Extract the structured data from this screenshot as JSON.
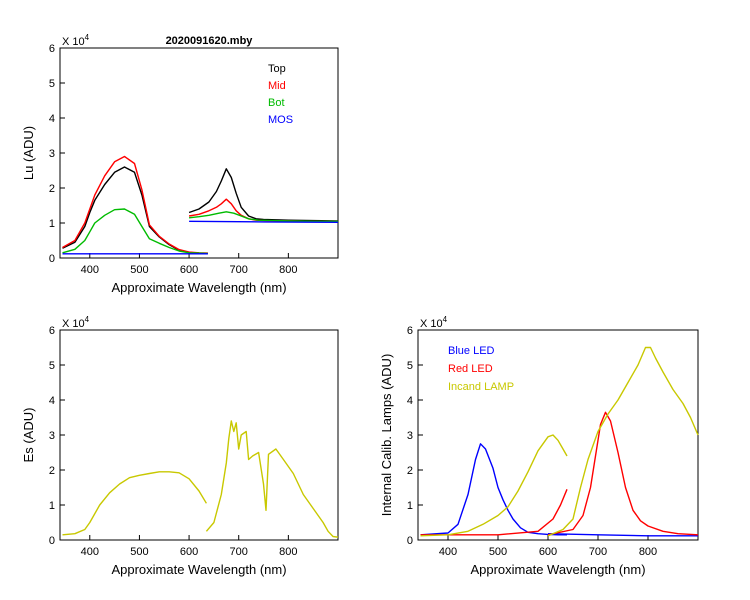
{
  "chart_data": [
    {
      "type": "line",
      "title": "2020091620.mby",
      "xlabel": "Approximate Wavelength (nm)",
      "ylabel": "Lu (ADU)",
      "xlim": [
        340,
        900
      ],
      "ylim": [
        0,
        6
      ],
      "y_multiplier": "X 10",
      "y_exponent": "4",
      "xticks": [
        400,
        500,
        600,
        700,
        800
      ],
      "yticks": [
        0,
        1,
        2,
        3,
        4,
        5,
        6
      ],
      "legend_position": "top-right",
      "series": [
        {
          "name": "Top",
          "color": "#000000",
          "segments": [
            {
              "x": [
                345,
                370,
                390,
                400,
                410,
                430,
                450,
                470,
                490,
                505,
                520,
                540,
                560,
                580,
                600,
                620,
                638
              ],
              "y": [
                0.28,
                0.45,
                0.9,
                1.3,
                1.65,
                2.1,
                2.45,
                2.6,
                2.45,
                1.8,
                0.9,
                0.6,
                0.38,
                0.22,
                0.16,
                0.14,
                0.13
              ]
            },
            {
              "x": [
                600,
                620,
                640,
                655,
                665,
                675,
                685,
                695,
                705,
                720,
                735,
                750,
                800,
                850,
                900
              ],
              "y": [
                1.3,
                1.4,
                1.6,
                1.9,
                2.2,
                2.55,
                2.3,
                1.85,
                1.45,
                1.2,
                1.12,
                1.1,
                1.08,
                1.07,
                1.06
              ]
            }
          ]
        },
        {
          "name": "Mid",
          "color": "#ff0000",
          "segments": [
            {
              "x": [
                345,
                370,
                390,
                400,
                410,
                430,
                450,
                470,
                490,
                505,
                520,
                540,
                560,
                580,
                600,
                620,
                638
              ],
              "y": [
                0.3,
                0.5,
                1.0,
                1.4,
                1.8,
                2.35,
                2.75,
                2.9,
                2.7,
                1.95,
                0.95,
                0.62,
                0.4,
                0.24,
                0.17,
                0.15,
                0.14
              ]
            },
            {
              "x": [
                600,
                620,
                640,
                655,
                665,
                675,
                685,
                695,
                705,
                720,
                735,
                750,
                800,
                850,
                900
              ],
              "y": [
                1.2,
                1.25,
                1.35,
                1.45,
                1.55,
                1.68,
                1.55,
                1.35,
                1.22,
                1.12,
                1.08,
                1.07,
                1.06,
                1.05,
                1.05
              ]
            }
          ]
        },
        {
          "name": "Bot",
          "color": "#00bb00",
          "segments": [
            {
              "x": [
                345,
                370,
                390,
                400,
                410,
                430,
                450,
                470,
                490,
                505,
                520,
                540,
                560,
                580,
                600,
                620,
                638
              ],
              "y": [
                0.15,
                0.25,
                0.5,
                0.75,
                1.0,
                1.22,
                1.38,
                1.4,
                1.25,
                0.9,
                0.55,
                0.42,
                0.3,
                0.2,
                0.15,
                0.14,
                0.13
              ]
            },
            {
              "x": [
                600,
                620,
                640,
                660,
                675,
                690,
                705,
                720,
                740,
                800,
                850,
                900
              ],
              "y": [
                1.15,
                1.18,
                1.22,
                1.28,
                1.32,
                1.28,
                1.2,
                1.12,
                1.08,
                1.06,
                1.05,
                1.05
              ]
            }
          ]
        },
        {
          "name": "MOS",
          "color": "#0000ff",
          "segments": [
            {
              "x": [
                345,
                500,
                638
              ],
              "y": [
                0.12,
                0.12,
                0.12
              ]
            },
            {
              "x": [
                600,
                750,
                900
              ],
              "y": [
                1.05,
                1.03,
                1.02
              ]
            }
          ]
        }
      ]
    },
    {
      "type": "line",
      "title": "",
      "xlabel": "Approximate Wavelength (nm)",
      "ylabel": "Es  (ADU)",
      "xlim": [
        340,
        900
      ],
      "ylim": [
        0,
        6
      ],
      "y_multiplier": "X 10",
      "y_exponent": "4",
      "xticks": [
        400,
        500,
        600,
        700,
        800
      ],
      "yticks": [
        0,
        1,
        2,
        3,
        4,
        5,
        6
      ],
      "series": [
        {
          "name": "Es",
          "color": "#c8c800",
          "segments": [
            {
              "x": [
                345,
                370,
                390,
                400,
                420,
                440,
                460,
                480,
                500,
                520,
                540,
                560,
                580,
                600,
                620,
                635
              ],
              "y": [
                0.15,
                0.18,
                0.3,
                0.5,
                1.0,
                1.35,
                1.6,
                1.78,
                1.85,
                1.9,
                1.95,
                1.95,
                1.92,
                1.75,
                1.4,
                1.05
              ]
            },
            {
              "x": [
                635,
                650,
                665,
                675,
                680,
                685,
                690,
                695,
                700,
                705,
                715,
                720,
                728,
                740,
                750,
                755,
                760,
                775,
                790,
                810,
                830,
                850,
                870,
                880,
                890,
                900
              ],
              "y": [
                0.25,
                0.5,
                1.3,
                2.2,
                2.9,
                3.4,
                3.1,
                3.35,
                2.6,
                3.0,
                3.1,
                2.3,
                2.4,
                2.5,
                1.6,
                0.85,
                2.45,
                2.6,
                2.3,
                1.9,
                1.3,
                0.9,
                0.5,
                0.25,
                0.1,
                0.08
              ]
            }
          ]
        }
      ]
    },
    {
      "type": "line",
      "title": "",
      "xlabel": "Approximate Wavelength (nm)",
      "ylabel": "Internal Calib. Lamps  (ADU)",
      "xlim": [
        340,
        900
      ],
      "ylim": [
        0,
        6
      ],
      "y_multiplier": "X 10",
      "y_exponent": "4",
      "xticks": [
        400,
        500,
        600,
        700,
        800
      ],
      "yticks": [
        0,
        1,
        2,
        3,
        4,
        5,
        6
      ],
      "legend_position": "top-left",
      "series": [
        {
          "name": "Blue LED",
          "color": "#0000ff",
          "segments": [
            {
              "x": [
                345,
                400,
                420,
                440,
                455,
                465,
                475,
                490,
                500,
                510,
                520,
                530,
                545,
                560,
                580,
                600,
                620,
                638
              ],
              "y": [
                0.15,
                0.2,
                0.45,
                1.3,
                2.3,
                2.75,
                2.6,
                2.05,
                1.5,
                1.15,
                0.85,
                0.6,
                0.35,
                0.22,
                0.18,
                0.16,
                0.15,
                0.15
              ]
            },
            {
              "x": [
                600,
                700,
                800,
                900
              ],
              "y": [
                0.18,
                0.15,
                0.12,
                0.12
              ]
            }
          ]
        },
        {
          "name": "Red LED",
          "color": "#ff0000",
          "segments": [
            {
              "x": [
                345,
                500,
                580,
                610,
                625,
                638
              ],
              "y": [
                0.15,
                0.15,
                0.25,
                0.6,
                1.0,
                1.45
              ]
            },
            {
              "x": [
                600,
                650,
                670,
                685,
                695,
                705,
                715,
                725,
                740,
                755,
                770,
                785,
                800,
                830,
                860,
                900
              ],
              "y": [
                0.15,
                0.3,
                0.7,
                1.5,
                2.4,
                3.3,
                3.65,
                3.4,
                2.5,
                1.5,
                0.85,
                0.55,
                0.4,
                0.25,
                0.18,
                0.15
              ]
            }
          ]
        },
        {
          "name": "Incand LAMP",
          "color": "#c8c800",
          "segments": [
            {
              "x": [
                345,
                400,
                440,
                470,
                500,
                520,
                540,
                560,
                580,
                600,
                610,
                620,
                630,
                638
              ],
              "y": [
                0.12,
                0.15,
                0.25,
                0.45,
                0.7,
                0.95,
                1.4,
                1.95,
                2.55,
                2.95,
                3.0,
                2.85,
                2.6,
                2.4
              ]
            },
            {
              "x": [
                600,
                630,
                650,
                665,
                680,
                700,
                720,
                740,
                760,
                780,
                795,
                805,
                815,
                830,
                850,
                870,
                885,
                900
              ],
              "y": [
                0.12,
                0.3,
                0.6,
                1.5,
                2.3,
                3.1,
                3.6,
                4.0,
                4.5,
                5.0,
                5.5,
                5.5,
                5.2,
                4.8,
                4.3,
                3.9,
                3.5,
                3.0
              ]
            }
          ]
        }
      ]
    }
  ]
}
